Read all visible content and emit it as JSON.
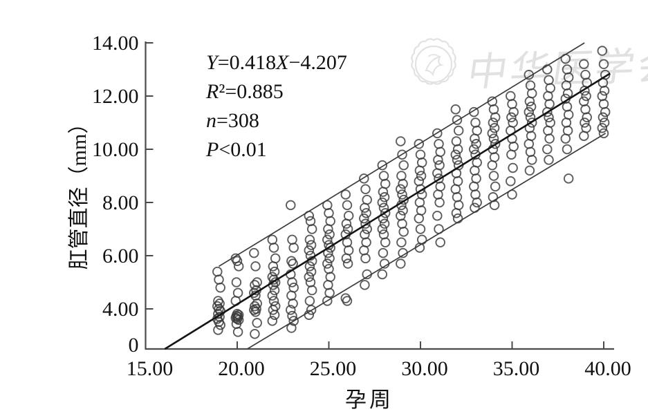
{
  "figure_title": "",
  "watermark": {
    "text": "中华医学会",
    "logo": "cma-flower-badge",
    "color": "#dcdcdc"
  },
  "stats": {
    "lines": [
      "Y=0.418X−4.207",
      "R²=0.885",
      "n=308",
      "P<0.01"
    ]
  },
  "chart_data": {
    "type": "scatter",
    "xlabel": "孕周",
    "ylabel": "肛管直径（mm）",
    "x_ticks": [
      {
        "v": 15,
        "label": "15.00"
      },
      {
        "v": 20,
        "label": "20.00"
      },
      {
        "v": 25,
        "label": "25.00"
      },
      {
        "v": 30,
        "label": "30.00"
      },
      {
        "v": 35,
        "label": "35.00"
      },
      {
        "v": 40,
        "label": "40.00"
      }
    ],
    "y_ticks": [
      {
        "v": 14,
        "label": "14.00"
      },
      {
        "v": 12,
        "label": "12.00"
      },
      {
        "v": 10,
        "label": "10.00"
      },
      {
        "v": 8,
        "label": "8.00"
      },
      {
        "v": 6,
        "label": "6.00"
      },
      {
        "v": 4,
        "label": "4.00"
      },
      {
        "v": 0,
        "label": "0"
      }
    ],
    "xlim": [
      15,
      40.5
    ],
    "ylim": [
      0,
      14
    ],
    "axis_note": "y-axis segment between 0 and 4.00 is compressed (one tick interval spans 4 units)",
    "regression": {
      "equation": "Y=0.418X−4.207",
      "r_squared": 0.885,
      "n": 308,
      "p": "<0.01"
    },
    "fit_line": {
      "x1": 16.05,
      "y1": 0,
      "x2": 40.35,
      "y2": 12.85
    },
    "ci_upper": {
      "x1": 19.0,
      "y1": 5.6,
      "x2": 38.95,
      "y2": 14.0
    },
    "ci_lower": {
      "x1": 20.55,
      "y1": 0,
      "x2": 40.1,
      "y2": 10.6
    },
    "points_by_week": [
      {
        "week": 19,
        "diameters": [
          5.4,
          5.1,
          4.8,
          4.3,
          4.2,
          4.1,
          4.0,
          3.8,
          3.5,
          3.2,
          3.0,
          2.7,
          2.4,
          1.9
        ]
      },
      {
        "week": 20,
        "diameters": [
          5.9,
          5.8,
          5.6,
          5.0,
          4.6,
          4.3,
          3.5,
          3.4,
          3.3,
          3.2,
          3.1,
          3.0,
          2.9,
          2.5,
          1.7
        ]
      },
      {
        "week": 21,
        "diameters": [
          6.1,
          5.6,
          5.0,
          4.9,
          4.7,
          4.6,
          4.5,
          4.2,
          4.1,
          4.0,
          3.9,
          3.7,
          2.6,
          1.5
        ]
      },
      {
        "week": 22,
        "diameters": [
          6.6,
          6.3,
          5.9,
          5.6,
          5.4,
          5.2,
          5.1,
          5.0,
          4.9,
          4.7,
          4.5,
          4.3,
          4.1,
          3.9,
          3.4,
          2.8
        ]
      },
      {
        "week": 23,
        "diameters": [
          7.9,
          6.6,
          6.3,
          5.8,
          5.7,
          5.3,
          5.0,
          4.8,
          4.5,
          4.2,
          3.9,
          3.3,
          2.8,
          2.1
        ]
      },
      {
        "week": 24,
        "diameters": [
          7.5,
          7.3,
          7.0,
          6.6,
          6.4,
          6.2,
          6.0,
          5.8,
          5.6,
          5.4,
          5.2,
          5.0,
          4.7,
          4.3,
          3.9,
          3.4
        ]
      },
      {
        "week": 25,
        "diameters": [
          7.9,
          7.6,
          7.3,
          7.0,
          6.8,
          6.6,
          6.4,
          6.3,
          6.1,
          5.9,
          5.7,
          5.5,
          5.2,
          4.9,
          4.6,
          4.3
        ]
      },
      {
        "week": 26,
        "diameters": [
          8.3,
          7.9,
          7.5,
          7.2,
          7.0,
          6.8,
          6.5,
          6.2,
          5.9,
          5.7,
          4.4,
          4.3
        ]
      },
      {
        "week": 27,
        "diameters": [
          8.9,
          8.5,
          8.1,
          7.8,
          7.6,
          7.4,
          7.2,
          7.0,
          6.8,
          6.5,
          6.2,
          5.9,
          5.3,
          4.9
        ]
      },
      {
        "week": 28,
        "diameters": [
          9.4,
          9.0,
          8.7,
          8.4,
          8.2,
          8.0,
          7.8,
          7.6,
          7.4,
          7.2,
          7.0,
          6.8,
          6.5,
          6.1,
          5.7,
          5.3
        ]
      },
      {
        "week": 29,
        "diameters": [
          10.3,
          9.8,
          9.4,
          9.0,
          8.7,
          8.5,
          8.3,
          8.1,
          7.9,
          7.7,
          7.5,
          7.2,
          6.9,
          6.5,
          6.1,
          5.7
        ]
      },
      {
        "week": 30,
        "diameters": [
          10.2,
          9.8,
          9.5,
          9.2,
          9.0,
          8.8,
          8.5,
          8.3,
          8.0,
          7.7,
          7.4,
          7.0,
          6.6,
          6.3
        ]
      },
      {
        "week": 31,
        "diameters": [
          10.6,
          10.2,
          9.9,
          9.6,
          9.4,
          9.1,
          8.9,
          8.6,
          8.3,
          8.0,
          7.5,
          7.0,
          6.5
        ]
      },
      {
        "week": 32,
        "diameters": [
          11.5,
          11.1,
          10.7,
          10.3,
          10.0,
          9.8,
          9.6,
          9.4,
          9.1,
          8.8,
          8.5,
          8.2,
          7.9,
          7.6,
          7.4
        ]
      },
      {
        "week": 33,
        "diameters": [
          11.4,
          11.0,
          10.7,
          10.4,
          10.2,
          10.0,
          9.8,
          9.5,
          9.2,
          8.9,
          8.6,
          8.3,
          8.0,
          7.8
        ]
      },
      {
        "week": 34,
        "diameters": [
          11.8,
          11.5,
          11.2,
          11.0,
          10.8,
          10.6,
          10.4,
          10.2,
          10.0,
          9.7,
          9.4,
          9.0,
          8.6,
          8.2,
          7.9
        ]
      },
      {
        "week": 35,
        "diameters": [
          12.0,
          11.7,
          11.4,
          11.2,
          11.0,
          10.7,
          10.4,
          10.1,
          9.8,
          9.3,
          8.8,
          8.3
        ]
      },
      {
        "week": 36,
        "diameters": [
          12.8,
          12.4,
          12.1,
          11.8,
          11.6,
          11.4,
          11.2,
          11.0,
          10.8,
          10.5,
          10.2,
          9.9,
          9.6,
          9.2
        ]
      },
      {
        "week": 37,
        "diameters": [
          13.0,
          12.6,
          12.3,
          12.0,
          11.7,
          11.4,
          11.2,
          11.0,
          10.7,
          10.4,
          10.0,
          9.6
        ]
      },
      {
        "week": 38,
        "diameters": [
          13.4,
          13.0,
          12.7,
          12.4,
          12.1,
          11.9,
          11.6,
          11.3,
          11.0,
          10.7,
          10.4,
          10.0,
          8.9
        ]
      },
      {
        "week": 39,
        "diameters": [
          13.2,
          12.8,
          12.5,
          12.2,
          12.0,
          11.8,
          11.5,
          11.2,
          11.0,
          10.8,
          10.5
        ]
      },
      {
        "week": 40,
        "diameters": [
          13.7,
          13.2,
          12.8,
          12.5,
          12.2,
          12.0,
          11.7,
          11.4,
          11.2,
          11.0,
          10.8,
          10.6
        ]
      }
    ]
  }
}
